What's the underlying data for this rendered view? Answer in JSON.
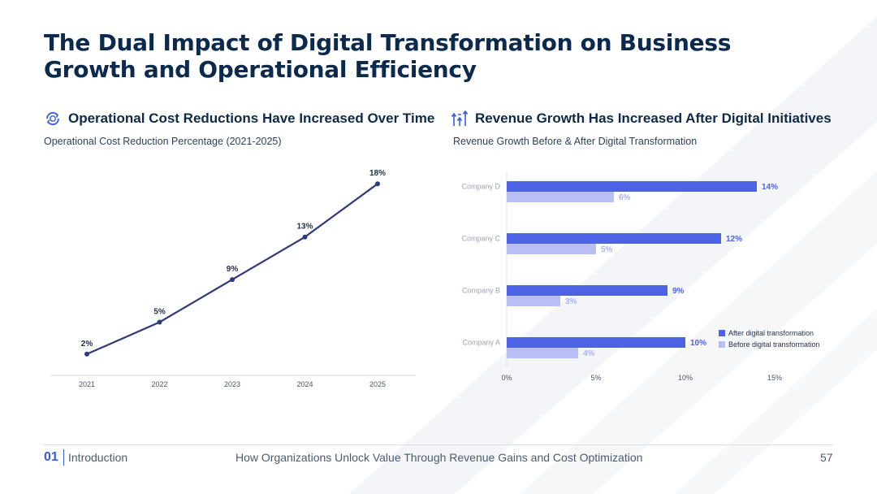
{
  "title": "The Dual Impact of Digital Transformation on Business Growth and Operational Efficiency",
  "left": {
    "heading": "Operational Cost Reductions Have Increased Over Time",
    "icon": "cost-cycle-icon",
    "subtitle": "Operational Cost Reduction Percentage (2021-2025)"
  },
  "right": {
    "heading": "Revenue Growth Has Increased After Digital Initiatives",
    "icon": "growth-arrows-icon",
    "subtitle": "Revenue Growth Before & After Digital Transformation"
  },
  "chart_data": [
    {
      "type": "line",
      "title": "Operational Cost Reduction Percentage (2021-2025)",
      "categories": [
        "2021",
        "2022",
        "2023",
        "2024",
        "2025"
      ],
      "values": [
        2,
        5,
        9,
        13,
        18
      ],
      "labels": [
        "2%",
        "5%",
        "9%",
        "13%",
        "18%"
      ],
      "ylim": [
        0,
        20
      ],
      "color": "#2e3a7a"
    },
    {
      "type": "bar",
      "orientation": "horizontal",
      "title": "Revenue Growth Before & After Digital Transformation",
      "categories": [
        "Company D",
        "Company C",
        "Company B",
        "Company A"
      ],
      "series": [
        {
          "name": "After digital transformation",
          "values": [
            14,
            12,
            9,
            10
          ],
          "labels": [
            "14%",
            "12%",
            "9%",
            "10%"
          ],
          "color": "#4c63e6"
        },
        {
          "name": "Before digital transformation",
          "values": [
            6,
            5,
            3,
            4
          ],
          "labels": [
            "6%",
            "5%",
            "3%",
            "4%"
          ],
          "color": "#b7bff5"
        }
      ],
      "xticks": [
        "0%",
        "5%",
        "10%",
        "15%"
      ],
      "xtick_values": [
        0,
        5,
        10,
        15
      ],
      "xlim": [
        0,
        15
      ],
      "legend": "bottom-right"
    }
  ],
  "footer": {
    "number": "01",
    "section": "Introduction",
    "center": "How Organizations Unlock Value Through Revenue Gains and Cost Optimization",
    "page": "57"
  }
}
